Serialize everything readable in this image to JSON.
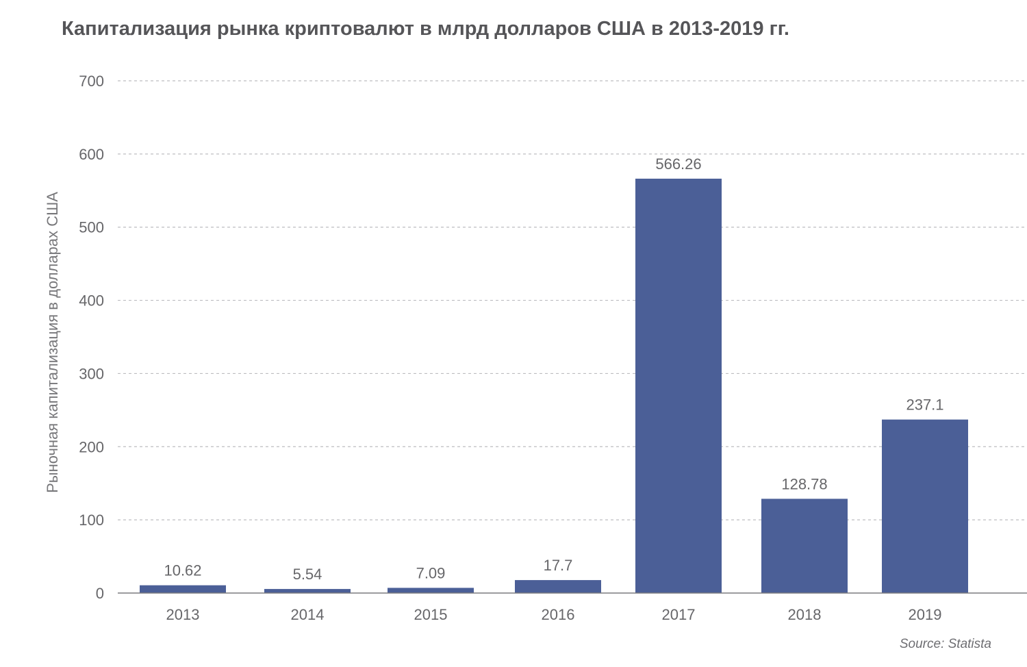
{
  "chart_data": {
    "type": "bar",
    "title": "Капитализация рынка криптовалют в млрд долларов США в 2013-2019 гг.",
    "ylabel": "Рыночная капитализация в долларах США",
    "xlabel": "",
    "categories": [
      "2013",
      "2014",
      "2015",
      "2016",
      "2017",
      "2018",
      "2019"
    ],
    "values": [
      10.62,
      5.54,
      7.09,
      17.7,
      566.26,
      128.78,
      237.1
    ],
    "data_labels": [
      "10.62",
      "5.54",
      "7.09",
      "17.7",
      "566.26",
      "128.78",
      "237.1"
    ],
    "ylim": [
      0,
      700
    ],
    "yticks": [
      0,
      100,
      200,
      300,
      400,
      500,
      600,
      700
    ],
    "grid": true,
    "grid_style": "dashed",
    "legend": "none",
    "bar_color": "#4b5f97",
    "source": "Source: Statista"
  }
}
